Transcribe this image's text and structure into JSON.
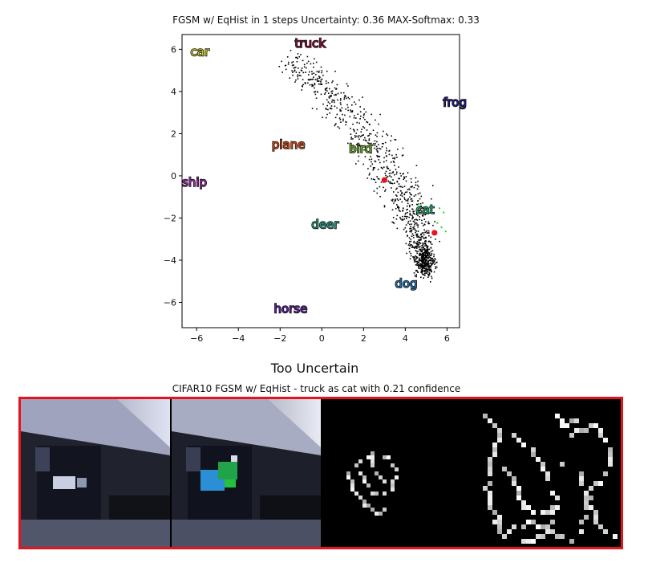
{
  "chart_data": {
    "type": "scatter",
    "title": "FGSM w/ EqHist in 1 steps Uncertainty: 0.36 MAX-Softmax: 0.33",
    "xlabel": "",
    "ylabel": "",
    "xlim": [
      -6.7,
      6.6
    ],
    "ylim": [
      -7.2,
      6.7
    ],
    "xticks": [
      -6,
      -4,
      -2,
      0,
      2,
      4,
      6
    ],
    "yticks": [
      -6,
      -4,
      -2,
      0,
      2,
      4,
      6
    ],
    "xtick_labels": [
      "−6",
      "−4",
      "−2",
      "0",
      "2",
      "4",
      "6"
    ],
    "ytick_labels": [
      "−6",
      "−4",
      "−2",
      "0",
      "2",
      "4",
      "6"
    ],
    "class_labels": [
      {
        "name": "truck",
        "x": -1.3,
        "y": 6.1,
        "color": "#8b0a3c"
      },
      {
        "name": "car",
        "x": -6.3,
        "y": 5.7,
        "color": "#c7c81d"
      },
      {
        "name": "frog",
        "x": 5.8,
        "y": 3.3,
        "color": "#1f1d8a"
      },
      {
        "name": "plane",
        "x": -2.4,
        "y": 1.3,
        "color": "#d94a11"
      },
      {
        "name": "bird",
        "x": 1.3,
        "y": 1.1,
        "color": "#6fb21f"
      },
      {
        "name": "ship",
        "x": -6.7,
        "y": -0.5,
        "color": "#9a2aa5"
      },
      {
        "name": "cat",
        "x": 4.5,
        "y": -1.8,
        "color": "#1fb36e"
      },
      {
        "name": "deer",
        "x": -0.5,
        "y": -2.5,
        "color": "#1e9b80"
      },
      {
        "name": "dog",
        "x": 3.5,
        "y": -5.3,
        "color": "#1f72b0"
      },
      {
        "name": "horse",
        "x": -2.3,
        "y": -6.5,
        "color": "#5a1fa5"
      }
    ],
    "highlight_points": [
      {
        "x": 3.0,
        "y": -0.2,
        "color": "#e8121b"
      },
      {
        "x": 5.4,
        "y": -2.7,
        "color": "#e8121b"
      }
    ],
    "green_points": [
      {
        "x": 5.6,
        "y": -1.5
      },
      {
        "x": 5.8,
        "y": -1.7
      },
      {
        "x": 5.7,
        "y": -2.4
      },
      {
        "x": 5.5,
        "y": -2.2
      },
      {
        "x": 5.9,
        "y": -2.6
      },
      {
        "x": 4.6,
        "y": -1.3
      }
    ],
    "cloud": {
      "description_free": true,
      "color": "#000000",
      "count": 900,
      "spine": [
        [
          -1.8,
          5.6
        ],
        [
          -0.3,
          4.6
        ],
        [
          1.2,
          3.0
        ],
        [
          2.7,
          1.0
        ],
        [
          3.9,
          -0.8
        ],
        [
          4.7,
          -2.8
        ],
        [
          5.0,
          -4.5
        ]
      ],
      "half_width": [
        0.55,
        0.8,
        0.95,
        1.0,
        1.0,
        0.75,
        0.45
      ]
    }
  },
  "figure_text": {
    "verdict": "Too Uncertain",
    "caption": "CIFAR10 FGSM w/ EqHist - truck as cat with 0.21 confidence"
  },
  "images": {
    "border_color": "#e8121b",
    "panels": [
      "original-image",
      "adversarial-image",
      "perturbation-map",
      "difference-map"
    ]
  }
}
